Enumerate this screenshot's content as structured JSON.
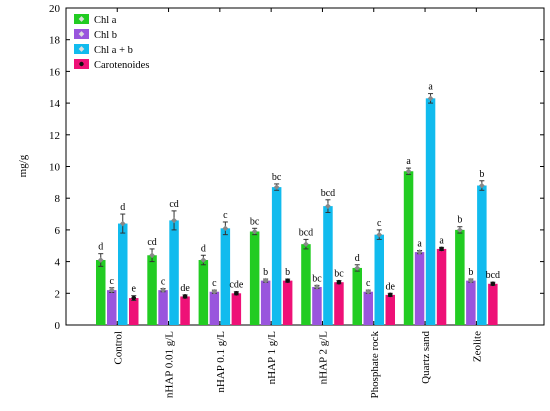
{
  "chart_data": {
    "type": "bar",
    "ylabel": "mg/g",
    "ylim": [
      0,
      20
    ],
    "yticks": [
      0,
      2,
      4,
      6,
      8,
      10,
      12,
      14,
      16,
      18,
      20
    ],
    "grid": false,
    "legend_position": "top-left",
    "categories": [
      "Control",
      "nHAP 0.01 g/L",
      "nHAP 0.1 g/L",
      "nHAP 1 g/L",
      "nHAP 2 g/L",
      "Phosphate rock",
      "Quartz sand",
      "Zeolite"
    ],
    "series": [
      {
        "name": "Chl a",
        "color": "#22cc22",
        "values": [
          4.1,
          4.4,
          4.1,
          5.9,
          5.1,
          3.6,
          9.7,
          6.0
        ],
        "errors": [
          0.4,
          0.4,
          0.3,
          0.2,
          0.3,
          0.2,
          0.2,
          0.2
        ],
        "labels": [
          "d",
          "cd",
          "d",
          "bc",
          "bcd",
          "d",
          "a",
          "b"
        ]
      },
      {
        "name": "Chl b",
        "color": "#9955dd",
        "values": [
          2.2,
          2.2,
          2.1,
          2.8,
          2.4,
          2.1,
          4.6,
          2.8
        ],
        "errors": [
          0.15,
          0.1,
          0.1,
          0.1,
          0.1,
          0.1,
          0.1,
          0.1
        ],
        "labels": [
          "c",
          "c",
          "c",
          "b",
          "bc",
          "c",
          "a",
          "b"
        ]
      },
      {
        "name": "Chl a + b",
        "color": "#11bbee",
        "values": [
          6.4,
          6.6,
          6.1,
          8.7,
          7.5,
          5.7,
          14.3,
          8.8
        ],
        "errors": [
          0.6,
          0.6,
          0.4,
          0.2,
          0.4,
          0.3,
          0.3,
          0.3
        ],
        "labels": [
          "d",
          "cd",
          "c",
          "bc",
          "bcd",
          "c",
          "a",
          "b"
        ]
      },
      {
        "name": "Carotenoides",
        "color": "#ee1177",
        "values": [
          1.7,
          1.8,
          2.0,
          2.8,
          2.7,
          1.9,
          4.8,
          2.6
        ],
        "errors": [
          0.15,
          0.1,
          0.1,
          0.1,
          0.1,
          0.1,
          0.1,
          0.1
        ],
        "labels": [
          "e",
          "de",
          "cde",
          "b",
          "bc",
          "de",
          "a",
          "bcd"
        ]
      }
    ]
  }
}
